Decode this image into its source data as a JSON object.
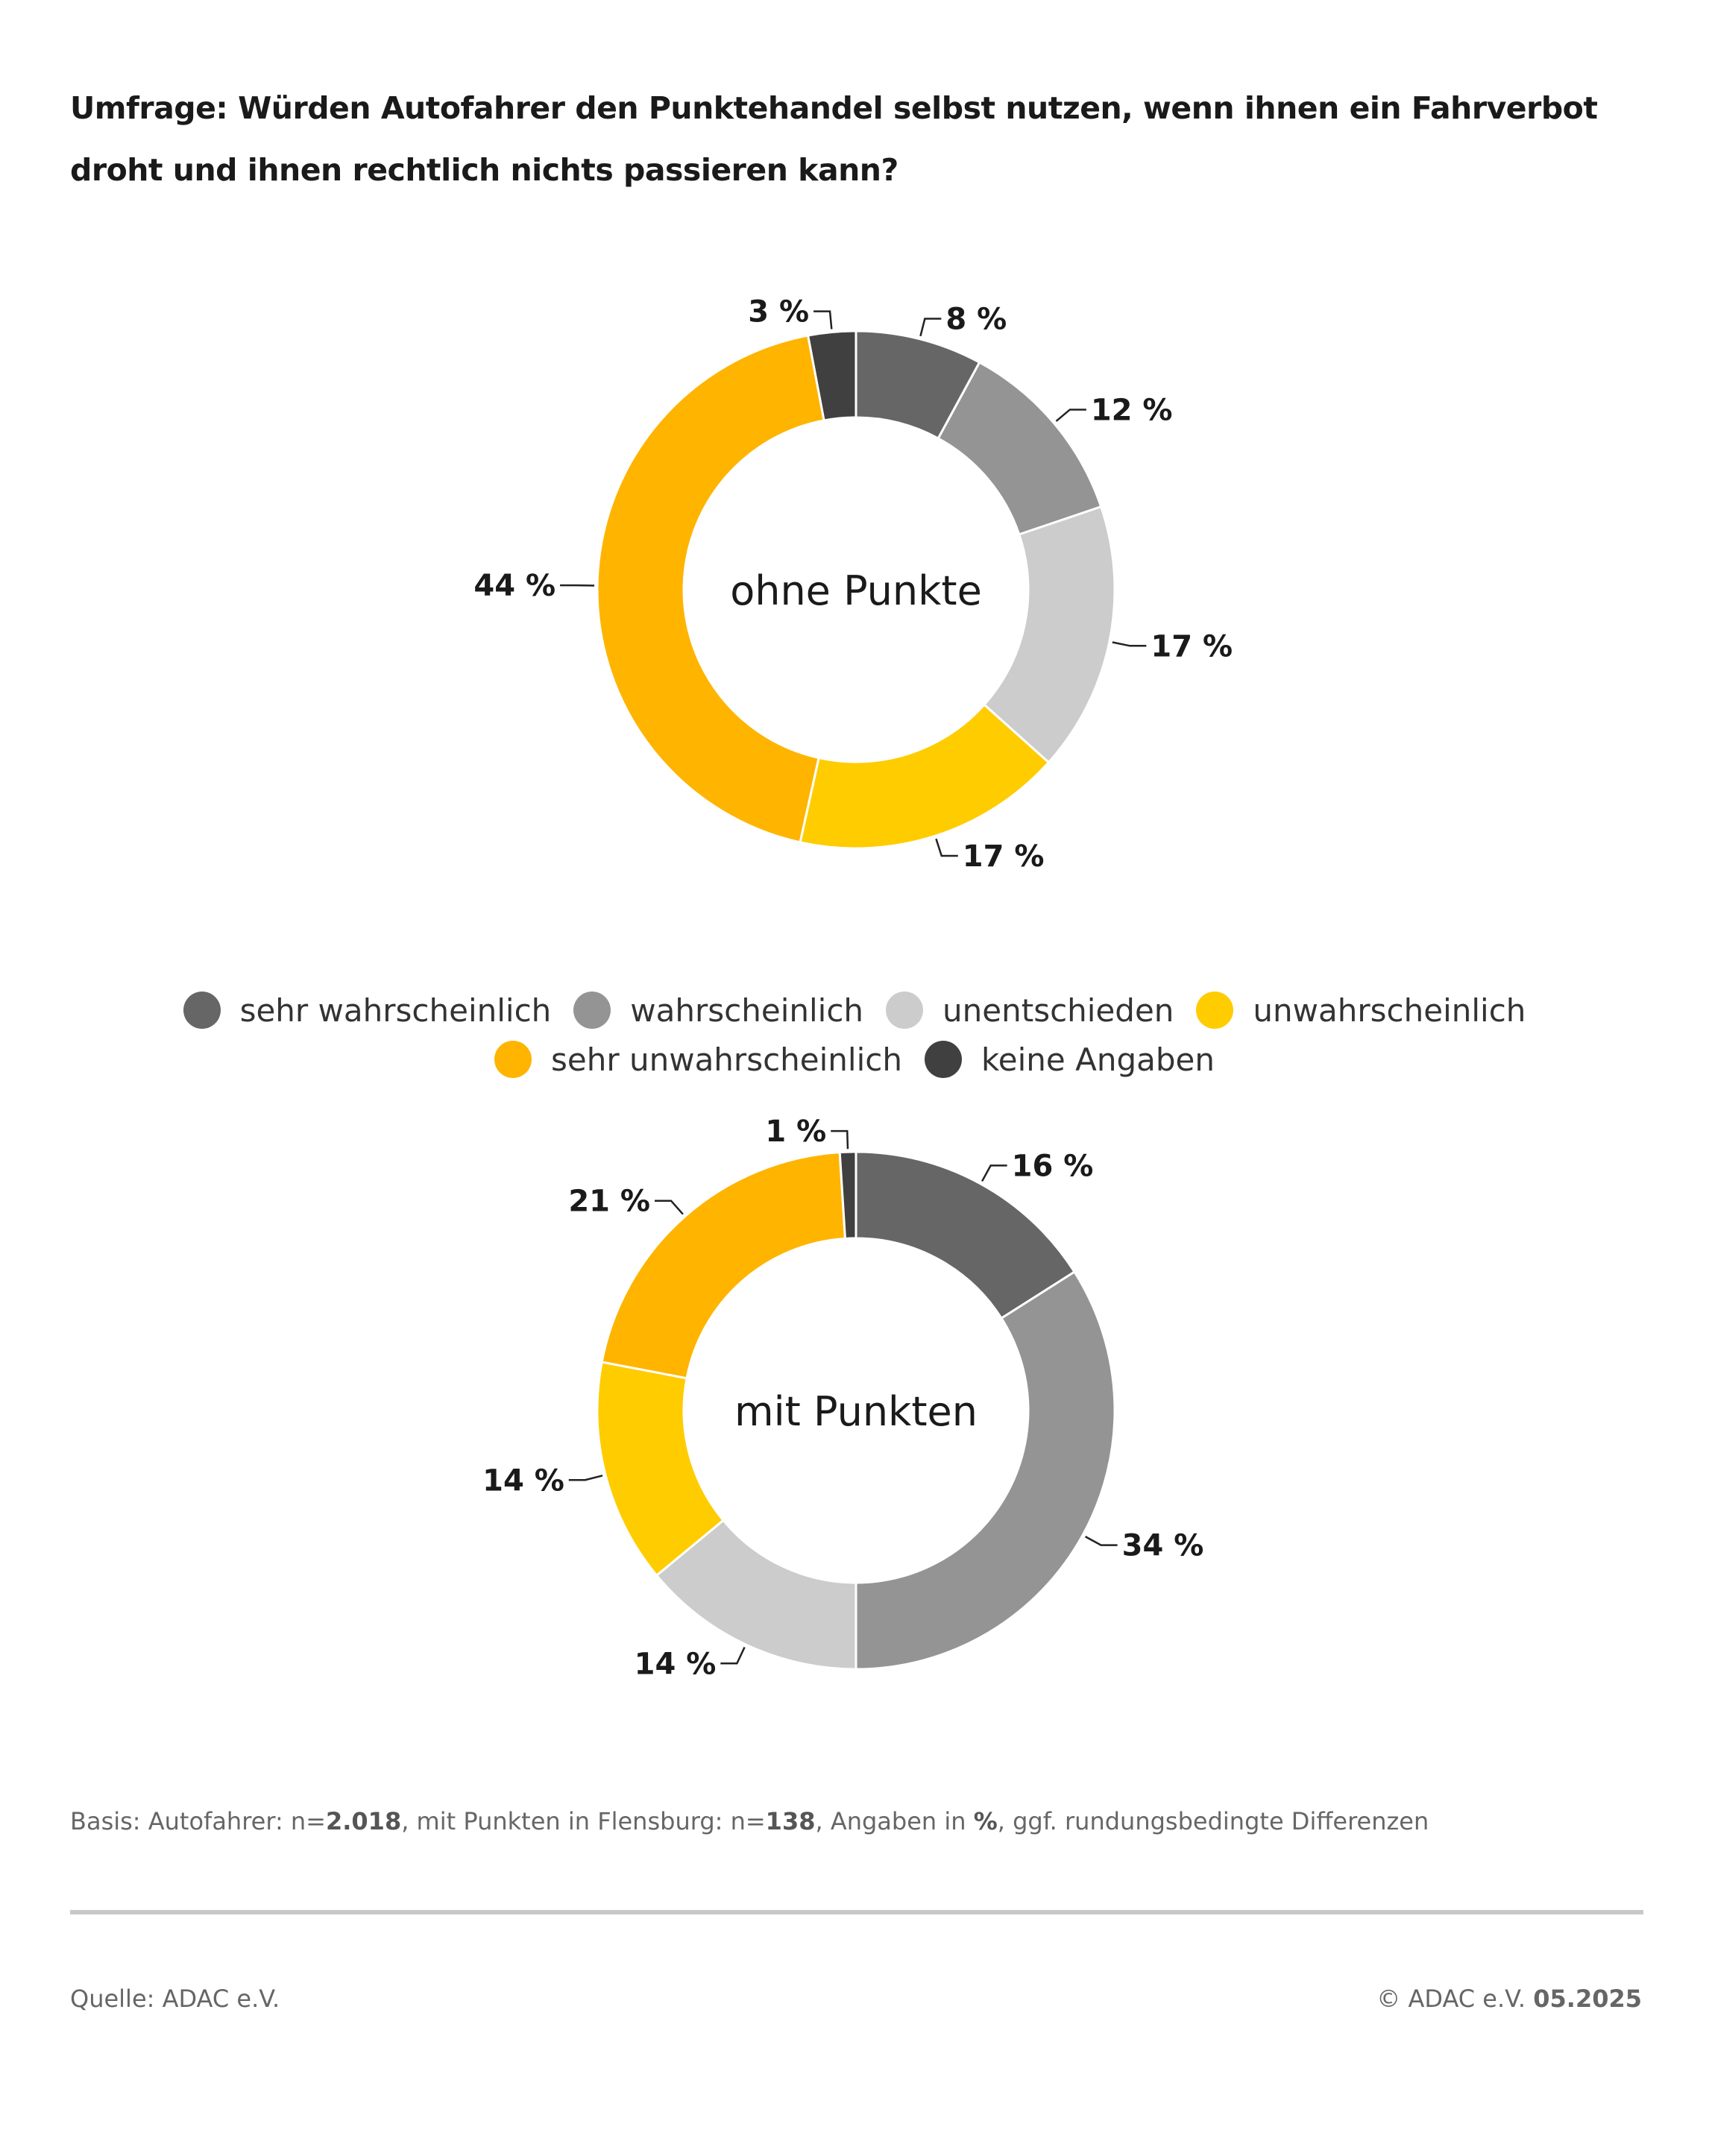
{
  "title": "Umfrage: Würden Autofahrer den Punktehandel selbst nutzen, wenn ihnen ein Fahrverbot droht und ihnen rechtlich nichts passieren kann?",
  "chart_data": [
    {
      "type": "pie",
      "variant": "donut",
      "center_label": "ohne Punkte",
      "categories": [
        "sehr wahrscheinlich",
        "wahrscheinlich",
        "unentschieden",
        "unwahrscheinlich",
        "sehr unwahrscheinlich",
        "keine Angaben"
      ],
      "values": [
        8,
        12,
        17,
        17,
        44,
        3
      ],
      "unit": "%"
    },
    {
      "type": "pie",
      "variant": "donut",
      "center_label": "mit Punkten",
      "categories": [
        "sehr wahrscheinlich",
        "wahrscheinlich",
        "unentschieden",
        "unwahrscheinlich",
        "sehr unwahrscheinlich",
        "keine Angaben"
      ],
      "values": [
        16,
        34,
        14,
        14,
        21,
        1
      ],
      "unit": "%"
    }
  ],
  "legend": [
    {
      "label": "sehr wahrscheinlich",
      "color": "#666666"
    },
    {
      "label": "wahrscheinlich",
      "color": "#949494"
    },
    {
      "label": "unentschieden",
      "color": "#cccccc"
    },
    {
      "label": "unwahrscheinlich",
      "color": "#ffcc00"
    },
    {
      "label": "sehr unwahrscheinlich",
      "color": "#ffb400"
    },
    {
      "label": "keine Angaben",
      "color": "#404040"
    }
  ],
  "basis": {
    "p1": "Basis: Autofahrer: n=",
    "n1": "2.018",
    "p2": ", mit Punkten in Flensburg: n=",
    "n2": "138",
    "p3": ", Angaben in ",
    "pct": "%",
    "p4": ", ggf. rundungsbedingte Differenzen"
  },
  "footer": {
    "source": "Quelle: ADAC e.V.",
    "copyright": "© ADAC e.V.",
    "date": "05.2025"
  }
}
